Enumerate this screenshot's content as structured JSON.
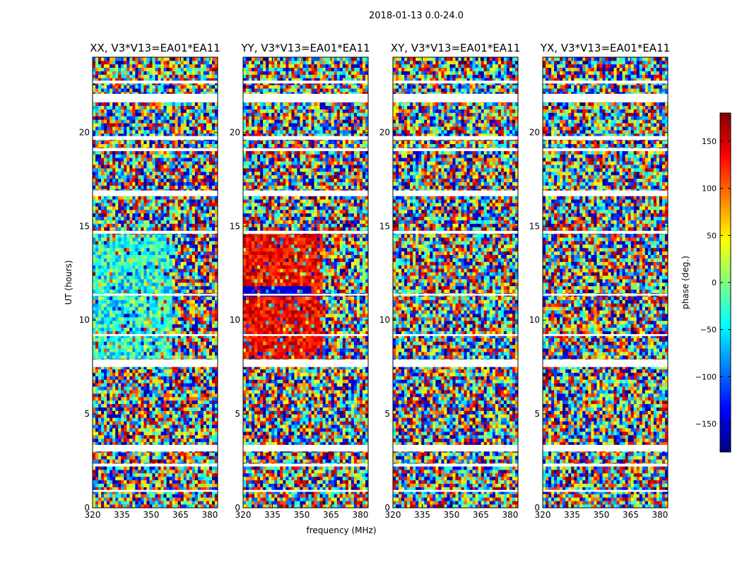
{
  "figure": {
    "suptitle": "2018-01-13 0.0-24.0",
    "xlabel": "frequency (MHz)",
    "ylabel": "UT (hours)"
  },
  "chart_data": {
    "type": "heatmap",
    "title": "2018-01-13 0.0-24.0",
    "xlabel": "frequency (MHz)",
    "ylabel": "UT (hours)",
    "xlim": [
      320,
      384
    ],
    "ylim": [
      0,
      24
    ],
    "xticks": [
      320,
      335,
      350,
      365,
      380
    ],
    "yticks": [
      0,
      5,
      10,
      15,
      20
    ],
    "colormap": "jet",
    "colorbar": {
      "label": "phase (deg.)",
      "range": [
        -180,
        180
      ],
      "ticks": [
        -150,
        -100,
        -50,
        0,
        50,
        100,
        150
      ],
      "ticklabels": [
        "−150",
        "−100",
        "−50",
        "0",
        "50",
        "100",
        "150"
      ]
    },
    "panels": [
      {
        "title": "XX, V3*V13=EA01*EA11",
        "pol": "XX",
        "baseline": "V3*V13=EA01*EA11"
      },
      {
        "title": "YY, V3*V13=EA01*EA11",
        "pol": "YY",
        "baseline": "V3*V13=EA01*EA11"
      },
      {
        "title": "XY, V3*V13=EA01*EA11",
        "pol": "XY",
        "baseline": "V3*V13=EA01*EA11"
      },
      {
        "title": "YX, V3*V13=EA01*EA11",
        "pol": "YX",
        "baseline": "V3*V13=EA01*EA11"
      }
    ],
    "flagged_ut_hours": [
      [
        0.85,
        0.95
      ],
      [
        2.2,
        2.35
      ],
      [
        3.0,
        3.35
      ],
      [
        7.5,
        7.9
      ],
      [
        9.15,
        9.25
      ],
      [
        11.3,
        11.4
      ],
      [
        14.6,
        14.75
      ],
      [
        16.6,
        16.9
      ],
      [
        19.0,
        19.15
      ],
      [
        19.6,
        19.8
      ],
      [
        21.6,
        22.05
      ],
      [
        22.6,
        22.75
      ]
    ],
    "coherent_phase_regions": [
      {
        "panel": "XX",
        "ut_range": [
          8.0,
          14.6
        ],
        "freq_range": [
          320,
          361
        ],
        "phase_deg": [
          -90,
          20
        ]
      },
      {
        "panel": "YY",
        "ut_range": [
          8.0,
          14.6
        ],
        "freq_range": [
          320,
          361
        ],
        "phase_deg": [
          100,
          170
        ]
      },
      {
        "panel": "YY",
        "ut_range": [
          11.2,
          11.9
        ],
        "freq_range": [
          320,
          355
        ],
        "phase_deg": [
          -170,
          -130
        ]
      }
    ]
  }
}
